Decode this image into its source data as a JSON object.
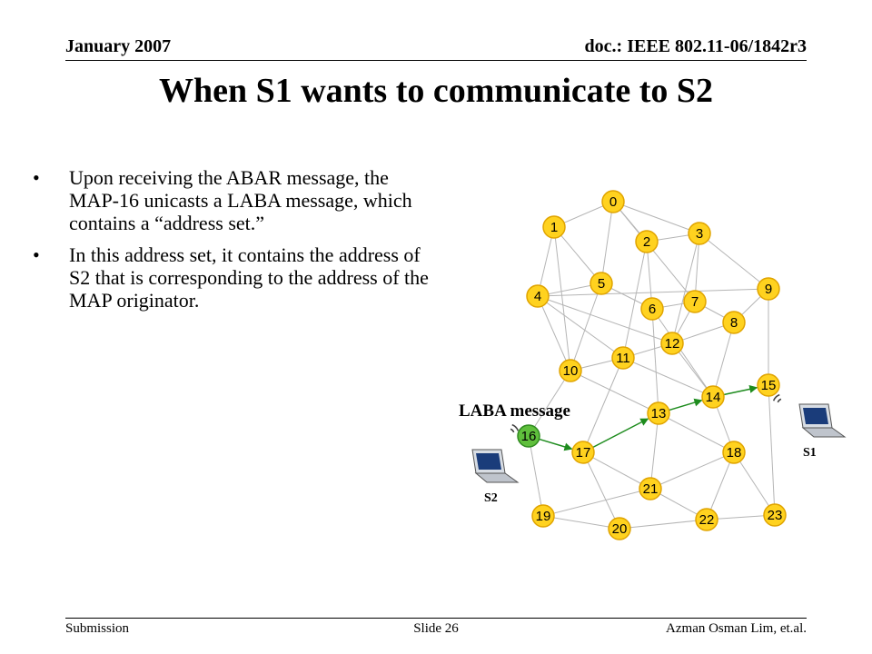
{
  "header": {
    "date": "January 2007",
    "doc": "doc.: IEEE 802.11-06/1842r3"
  },
  "title": "When S1 wants to communicate to S2",
  "bullets": [
    "Upon receiving the ABAR message, the MAP-16 unicasts a LABA message, which contains a “address set.”",
    "In this address set, it contains the address of S2 that is corresponding to the address of the MAP originator."
  ],
  "diagram": {
    "caption": "LABA message",
    "nodes": [
      {
        "id": "0"
      },
      {
        "id": "1"
      },
      {
        "id": "2"
      },
      {
        "id": "3"
      },
      {
        "id": "4"
      },
      {
        "id": "5"
      },
      {
        "id": "6"
      },
      {
        "id": "7"
      },
      {
        "id": "8"
      },
      {
        "id": "9"
      },
      {
        "id": "10"
      },
      {
        "id": "11"
      },
      {
        "id": "12"
      },
      {
        "id": "13"
      },
      {
        "id": "14"
      },
      {
        "id": "15"
      },
      {
        "id": "16",
        "highlight": true
      },
      {
        "id": "17"
      },
      {
        "id": "18"
      },
      {
        "id": "19"
      },
      {
        "id": "20"
      },
      {
        "id": "21"
      },
      {
        "id": "22"
      },
      {
        "id": "23"
      }
    ],
    "edges": [
      [
        "0",
        "1"
      ],
      [
        "0",
        "2"
      ],
      [
        "0",
        "3"
      ],
      [
        "0",
        "5"
      ],
      [
        "1",
        "4"
      ],
      [
        "1",
        "5"
      ],
      [
        "2",
        "3"
      ],
      [
        "2",
        "6"
      ],
      [
        "2",
        "11"
      ],
      [
        "3",
        "9"
      ],
      [
        "3",
        "7"
      ],
      [
        "3",
        "12"
      ],
      [
        "4",
        "5"
      ],
      [
        "4",
        "9"
      ],
      [
        "4",
        "11"
      ],
      [
        "4",
        "10"
      ],
      [
        "5",
        "6"
      ],
      [
        "5",
        "10"
      ],
      [
        "6",
        "7"
      ],
      [
        "6",
        "13"
      ],
      [
        "7",
        "8"
      ],
      [
        "7",
        "12"
      ],
      [
        "8",
        "9"
      ],
      [
        "8",
        "14"
      ],
      [
        "9",
        "15"
      ],
      [
        "10",
        "11"
      ],
      [
        "10",
        "13"
      ],
      [
        "10",
        "16"
      ],
      [
        "11",
        "12"
      ],
      [
        "11",
        "17"
      ],
      [
        "12",
        "14"
      ],
      [
        "12",
        "8"
      ],
      [
        "13",
        "21"
      ],
      [
        "13",
        "18"
      ],
      [
        "14",
        "18"
      ],
      [
        "14",
        "15"
      ],
      [
        "15",
        "23"
      ],
      [
        "16",
        "19"
      ],
      [
        "17",
        "21"
      ],
      [
        "17",
        "20"
      ],
      [
        "18",
        "21"
      ],
      [
        "18",
        "22"
      ],
      [
        "19",
        "20"
      ],
      [
        "19",
        "21"
      ],
      [
        "20",
        "22"
      ],
      [
        "21",
        "22"
      ],
      [
        "22",
        "23"
      ],
      [
        "18",
        "23"
      ],
      [
        "0",
        "7"
      ],
      [
        "6",
        "14"
      ],
      [
        "1",
        "10"
      ],
      [
        "11",
        "14"
      ],
      [
        "4",
        "12"
      ]
    ],
    "path": [
      [
        "16",
        "17"
      ],
      [
        "17",
        "13"
      ],
      [
        "13",
        "14"
      ],
      [
        "14",
        "15"
      ]
    ],
    "laptops": [
      {
        "label": "S2",
        "near": "16"
      },
      {
        "label": "S1",
        "near": "15"
      }
    ],
    "colors": {
      "node_fill": "#ffd21f",
      "node_stroke": "#e0a400",
      "highlight_fill": "#5fbf3c",
      "highlight_stroke": "#2f8a1f",
      "edge": "#b5b5b5",
      "path": "#1e8c1e"
    }
  },
  "footer": {
    "left": "Submission",
    "center": "Slide 26",
    "right": "Azman Osman Lim, et.al."
  }
}
